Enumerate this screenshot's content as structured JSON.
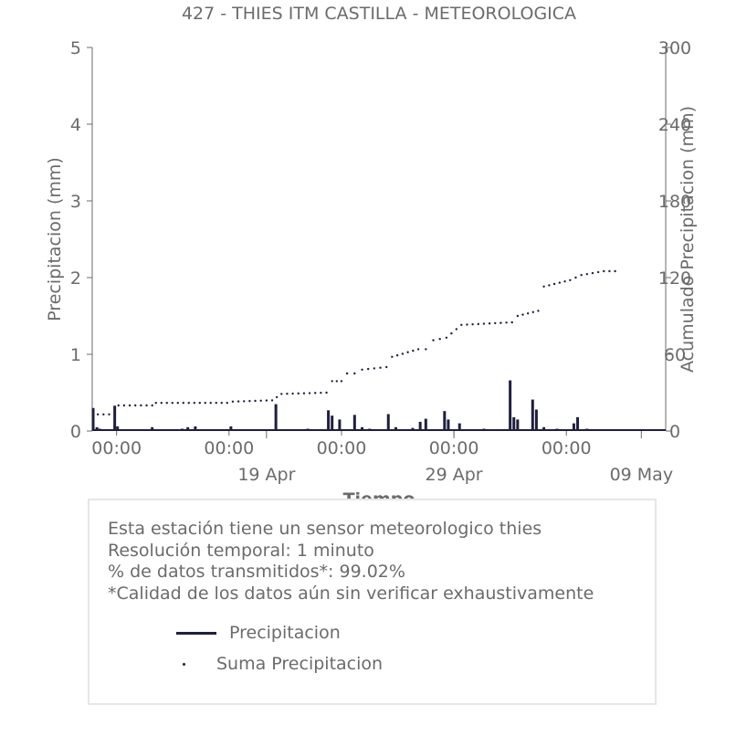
{
  "chart_data": {
    "type": "bar",
    "title": "427 - THIES ITM CASTILLA - METEOROLOGICA",
    "xlabel": "Tiempo",
    "ylabel": "Precipitacion (mm)",
    "y2label": "Acumulado Precipitacion (mm)",
    "ylim": [
      0,
      5
    ],
    "y2lim": [
      0,
      300
    ],
    "yticks": [
      "0",
      "1",
      "2",
      "3",
      "4",
      "5"
    ],
    "y2ticks": [
      "0",
      "60",
      "120",
      "180",
      "240",
      "300"
    ],
    "x_start_day": 9.7,
    "x_end_day": 40.3,
    "x_minor_labels": [
      {
        "day": 11,
        "text": "00:00"
      },
      {
        "day": 17,
        "text": "00:00"
      },
      {
        "day": 23,
        "text": "00:00"
      },
      {
        "day": 29,
        "text": "00:00"
      },
      {
        "day": 35,
        "text": "00:00"
      }
    ],
    "x_major_labels": [
      {
        "day": 19,
        "text": "19 Apr"
      },
      {
        "day": 29,
        "text": "29 Apr"
      },
      {
        "day": 39,
        "text": "09 May"
      }
    ],
    "series": [
      {
        "name": "Precipitacion",
        "color": "#1f1f3d",
        "points": [
          [
            9.75,
            0.3
          ],
          [
            9.95,
            0.05
          ],
          [
            10.1,
            0.03
          ],
          [
            10.9,
            0.33
          ],
          [
            11.05,
            0.06
          ],
          [
            11.2,
            0.02
          ],
          [
            12.9,
            0.05
          ],
          [
            14.5,
            0.03
          ],
          [
            14.8,
            0.05
          ],
          [
            15.2,
            0.06
          ],
          [
            17.1,
            0.06
          ],
          [
            18.6,
            0.02
          ],
          [
            19.5,
            0.35
          ],
          [
            21.2,
            0.03
          ],
          [
            22.3,
            0.27
          ],
          [
            22.5,
            0.2
          ],
          [
            22.9,
            0.15
          ],
          [
            23.7,
            0.21
          ],
          [
            24.1,
            0.05
          ],
          [
            24.5,
            0.03
          ],
          [
            25.5,
            0.22
          ],
          [
            25.9,
            0.05
          ],
          [
            26.8,
            0.04
          ],
          [
            27.2,
            0.12
          ],
          [
            27.5,
            0.16
          ],
          [
            28.5,
            0.26
          ],
          [
            28.7,
            0.15
          ],
          [
            29.3,
            0.1
          ],
          [
            30.6,
            0.03
          ],
          [
            31.1,
            0.02
          ],
          [
            32.0,
            0.66
          ],
          [
            32.2,
            0.18
          ],
          [
            32.4,
            0.15
          ],
          [
            33.2,
            0.41
          ],
          [
            33.4,
            0.28
          ],
          [
            33.8,
            0.05
          ],
          [
            34.5,
            0.03
          ],
          [
            35.4,
            0.1
          ],
          [
            35.6,
            0.18
          ],
          [
            36.1,
            0.03
          ],
          [
            36.9,
            0.02
          ]
        ]
      },
      {
        "name": "Suma Precipitacion",
        "color": "#1f1f3d",
        "points": [
          [
            10.0,
            13
          ],
          [
            10.9,
            13
          ],
          [
            11.1,
            20
          ],
          [
            12.9,
            20
          ],
          [
            13.1,
            22
          ],
          [
            16.9,
            22
          ],
          [
            17.2,
            23
          ],
          [
            19.3,
            24
          ],
          [
            19.8,
            29
          ],
          [
            22.2,
            30
          ],
          [
            22.5,
            39
          ],
          [
            23.0,
            39
          ],
          [
            23.3,
            45
          ],
          [
            23.7,
            45
          ],
          [
            24.1,
            48
          ],
          [
            25.4,
            50
          ],
          [
            25.7,
            58
          ],
          [
            27.1,
            64
          ],
          [
            27.5,
            64
          ],
          [
            27.9,
            71
          ],
          [
            28.6,
            73
          ],
          [
            29.4,
            83
          ],
          [
            32.1,
            85
          ],
          [
            32.4,
            90
          ],
          [
            33.5,
            94
          ],
          [
            33.8,
            113
          ],
          [
            35.2,
            118
          ],
          [
            35.8,
            122
          ],
          [
            37.0,
            125
          ],
          [
            37.6,
            125
          ]
        ]
      }
    ]
  },
  "info": {
    "line1": "Esta estación tiene un sensor meteorologico thies",
    "line2": "Resolución temporal: 1 minuto",
    "line3": "% de datos transmitidos*: 99.02%",
    "line4": "*Calidad de los datos aún sin verificar exhaustivamente"
  },
  "legend": {
    "precip_label": "Precipitacion",
    "sum_label": "Suma Precipitacion"
  }
}
